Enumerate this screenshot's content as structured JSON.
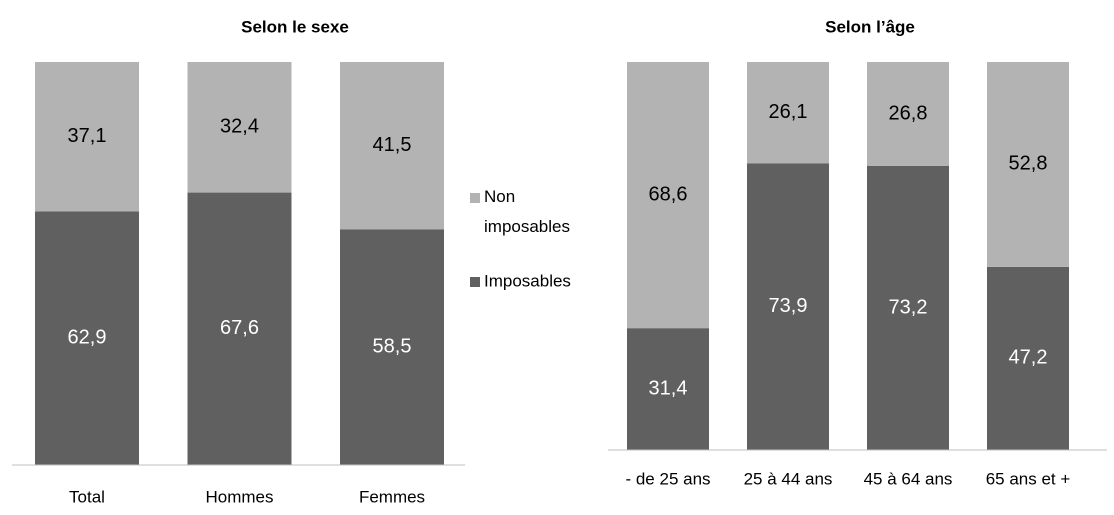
{
  "chart_data": [
    {
      "type": "stacked_bar",
      "title": "Selon le sexe",
      "categories": [
        "Total",
        "Hommes",
        "Femmes"
      ],
      "series": [
        {
          "name": "Imposables",
          "color": "#606060",
          "values": [
            62.9,
            67.6,
            58.5
          ],
          "value_labels": [
            "62,9",
            "67,6",
            "58,5"
          ]
        },
        {
          "name": "Non imposables",
          "color": "#b3b3b3",
          "values": [
            37.1,
            32.4,
            41.5
          ],
          "value_labels": [
            "37,1",
            "32,4",
            "41,5"
          ]
        }
      ]
    },
    {
      "type": "stacked_bar",
      "title": "Selon l’âge",
      "categories": [
        "- de 25 ans",
        "25 à 44 ans",
        "45 à 64 ans",
        "65 ans et +"
      ],
      "series": [
        {
          "name": "Imposables",
          "color": "#606060",
          "values": [
            31.4,
            73.9,
            73.2,
            47.2
          ],
          "value_labels": [
            "31,4",
            "73,9",
            "73,2",
            "47,2"
          ]
        },
        {
          "name": "Non imposables",
          "color": "#b3b3b3",
          "values": [
            68.6,
            26.1,
            26.8,
            52.8
          ],
          "value_labels": [
            "68,6",
            "26,1",
            "26,8",
            "52,8"
          ]
        }
      ]
    }
  ]
}
